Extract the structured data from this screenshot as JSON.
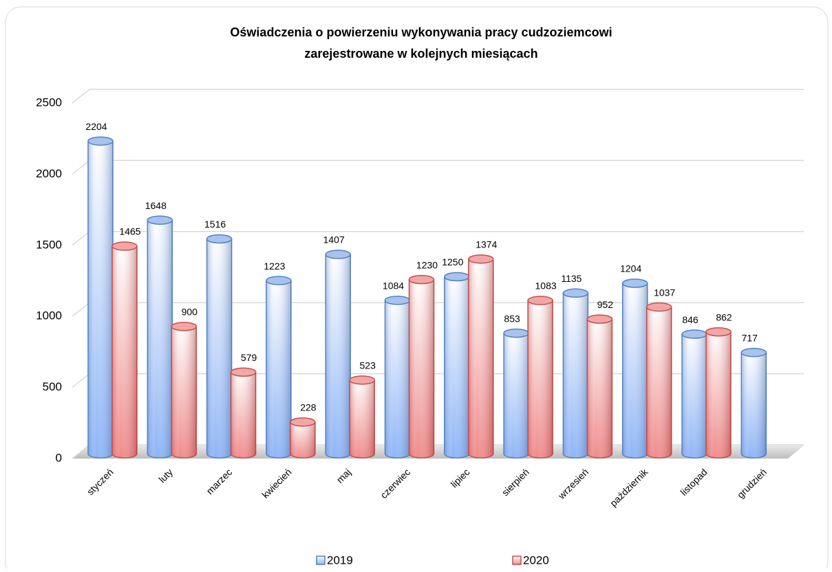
{
  "chart_data": {
    "type": "bar",
    "title": [
      "Oświadczenia o powierzeniu wykonywania pracy cudzoziemcowi",
      "zarejestrowane w kolejnych miesiącach"
    ],
    "categories": [
      "styczeń",
      "luty",
      "marzec",
      "kwiecień",
      "maj",
      "czerwiec",
      "lipiec",
      "sierpień",
      "wrzesień",
      "październik",
      "listopad",
      "grudzień"
    ],
    "series": [
      {
        "name": "2019",
        "color": "#4f81bd",
        "values": [
          2204,
          1648,
          1516,
          1223,
          1407,
          1084,
          1250,
          853,
          1135,
          1204,
          846,
          717
        ]
      },
      {
        "name": "2020",
        "color": "#c0504d",
        "values": [
          1465,
          900,
          579,
          228,
          523,
          1230,
          1374,
          1083,
          952,
          1037,
          862,
          null
        ]
      }
    ],
    "ylim": [
      0,
      2500
    ],
    "yticks": [
      0,
      500,
      1000,
      1500,
      2000,
      2500
    ],
    "grid": true,
    "legend": "bottom"
  }
}
